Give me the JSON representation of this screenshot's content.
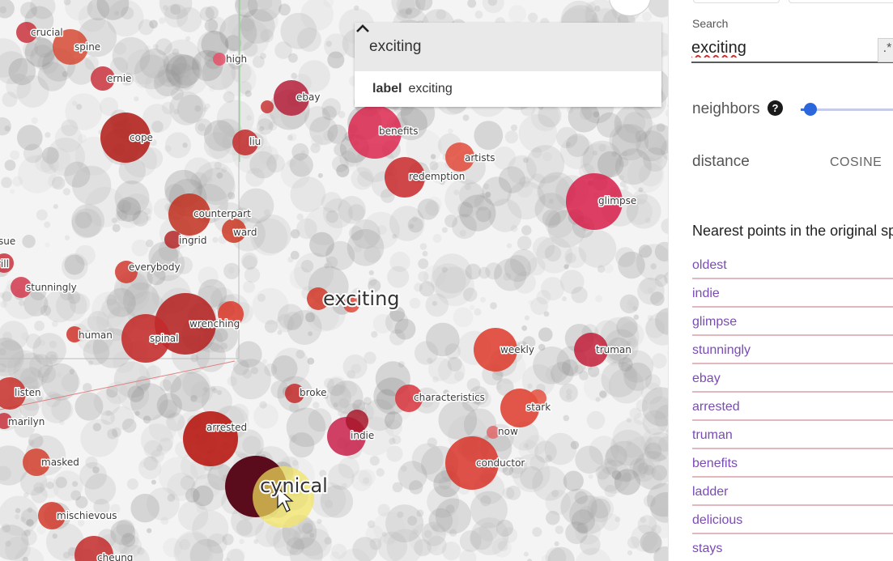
{
  "projector": {
    "point_labels": [
      {
        "text": "crucial"
      },
      {
        "text": "spine"
      },
      {
        "text": "high"
      },
      {
        "text": "ernie"
      },
      {
        "text": "ebay"
      },
      {
        "text": "cope"
      },
      {
        "text": "benefits"
      },
      {
        "text": "liu"
      },
      {
        "text": "artists"
      },
      {
        "text": "redemption"
      },
      {
        "text": "glimpse"
      },
      {
        "text": "counterpart"
      },
      {
        "text": "ingrid"
      },
      {
        "text": "ward"
      },
      {
        "text": "sue"
      },
      {
        "text": "everybody"
      },
      {
        "text": "rill"
      },
      {
        "text": "stunningly"
      },
      {
        "text": "exciting"
      },
      {
        "text": "wrenching"
      },
      {
        "text": "human"
      },
      {
        "text": "spinal"
      },
      {
        "text": "weekly"
      },
      {
        "text": "truman"
      },
      {
        "text": "listen"
      },
      {
        "text": "broke"
      },
      {
        "text": "characteristics"
      },
      {
        "text": "stark"
      },
      {
        "text": "marilyn"
      },
      {
        "text": "arrested"
      },
      {
        "text": "indie"
      },
      {
        "text": "now"
      },
      {
        "text": "masked"
      },
      {
        "text": "conductor"
      },
      {
        "text": "cynical"
      },
      {
        "text": "mischievous"
      },
      {
        "text": "cheung"
      }
    ],
    "label_dropdown": {
      "selected": "exciting",
      "item_key": "label",
      "item_value": "exciting"
    }
  },
  "panel": {
    "search_label": "Search",
    "search_value": "exciting",
    "regex_icon": ".*",
    "neighbors_label": "neighbors",
    "neighbors_value": 0.1,
    "distance_label": "distance",
    "distance_value": "COSINE",
    "nearest_title": "Nearest points in the original space:",
    "nearest": [
      "oldest",
      "indie",
      "glimpse",
      "stunningly",
      "ebay",
      "arrested",
      "truman",
      "benefits",
      "ladder",
      "delicious",
      "stays"
    ]
  },
  "colors": {
    "accent": "#2c66dd",
    "highlight_red": "#d9263a",
    "selected_point": "#5a0b1c",
    "cursor_highlight": "#f2e45c",
    "neighbor_link": "#7a4bb5"
  }
}
